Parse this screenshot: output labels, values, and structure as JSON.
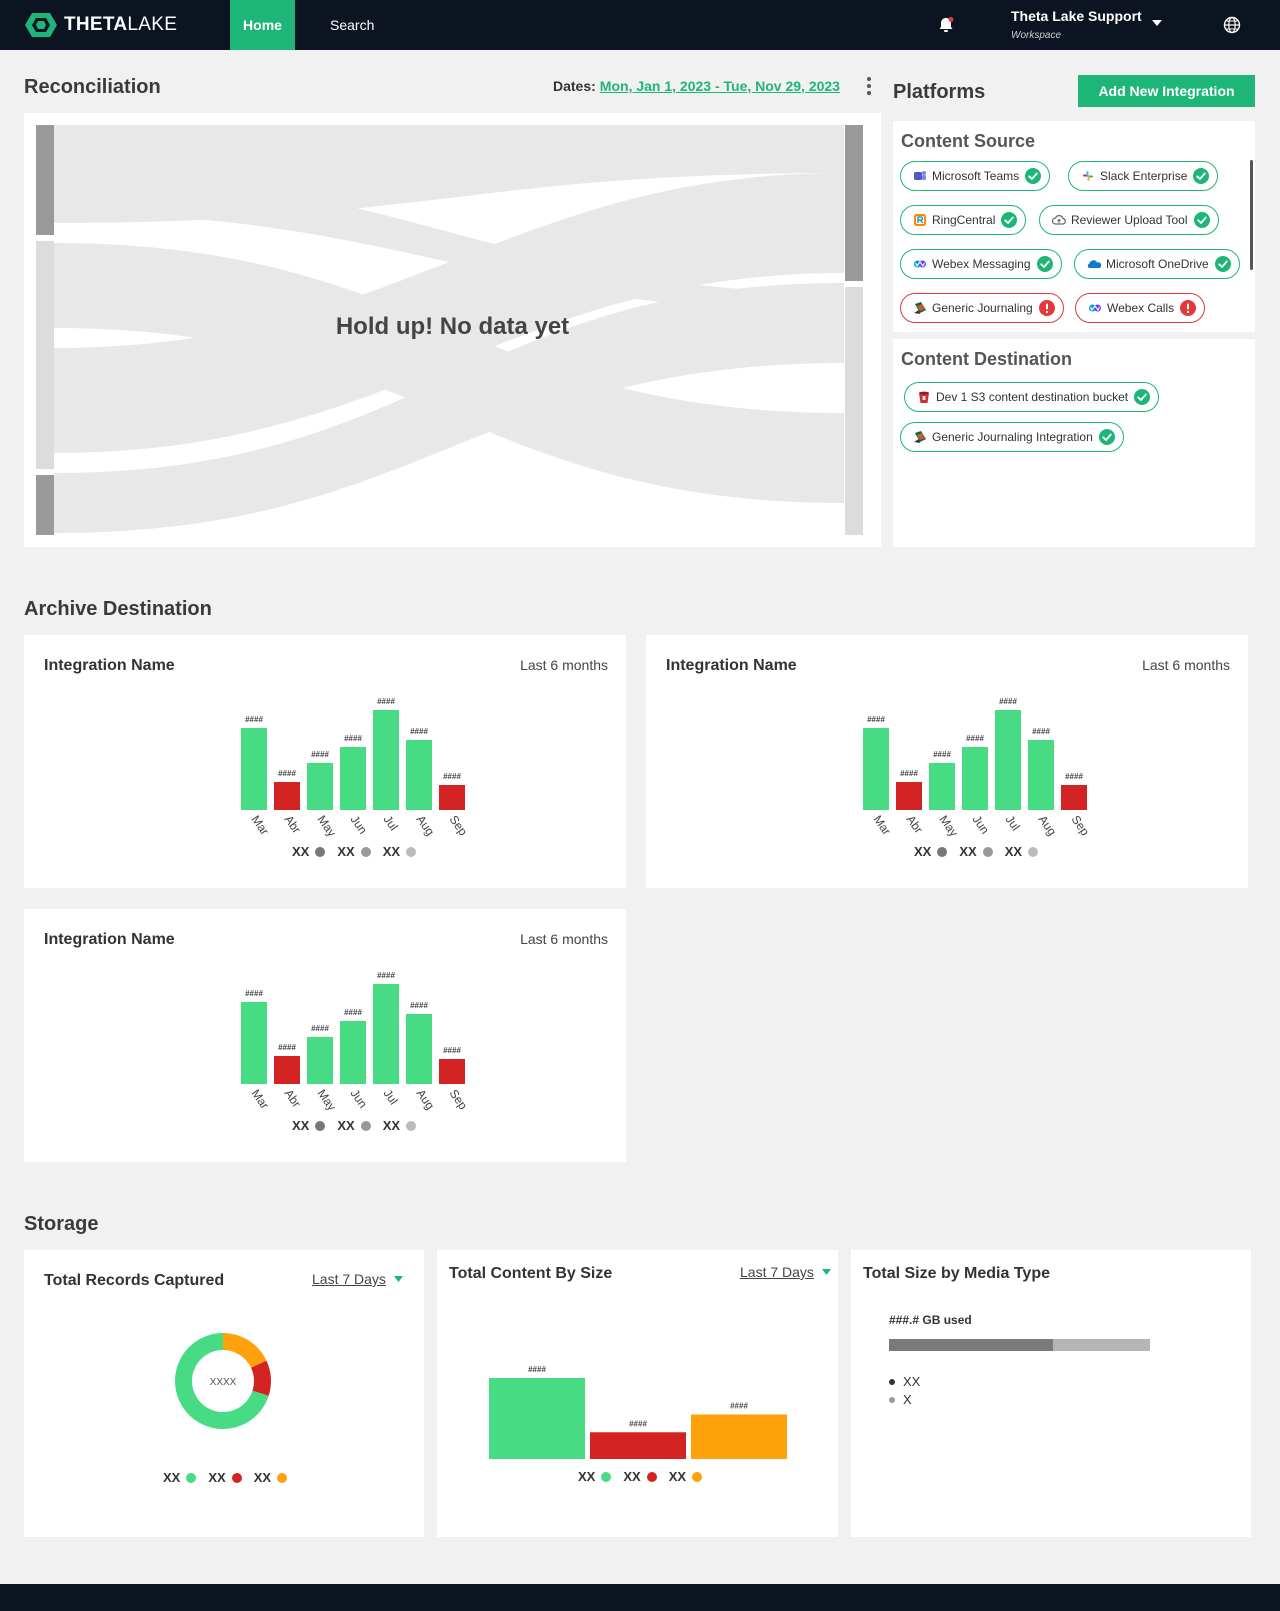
{
  "nav": {
    "brand_bold": "THETA",
    "brand_light": "LAKE",
    "home": "Home",
    "search": "Search",
    "user_name": "Theta Lake Support",
    "user_sub": "Workspace"
  },
  "reconciliation": {
    "title": "Reconciliation",
    "dates_label": "Dates:",
    "dates_value": "Mon, Jan 1, 2023 - Tue, Nov 29, 2023",
    "empty_message": "Hold up! No data yet"
  },
  "platforms": {
    "title": "Platforms",
    "add_button": "Add New Integration",
    "content_source_title": "Content Source",
    "content_source": [
      {
        "label": "Microsoft Teams",
        "icon": "teams-icon",
        "status": "ok"
      },
      {
        "label": "Slack Enterprise",
        "icon": "slack-icon",
        "status": "ok"
      },
      {
        "label": "RingCentral",
        "icon": "ringcentral-icon",
        "status": "ok"
      },
      {
        "label": "Reviewer Upload Tool",
        "icon": "cloud-upload-icon",
        "status": "ok"
      },
      {
        "label": "Webex Messaging",
        "icon": "webex-icon",
        "status": "ok"
      },
      {
        "label": "Microsoft OneDrive",
        "icon": "onedrive-icon",
        "status": "ok"
      },
      {
        "label": "Generic Journaling",
        "icon": "journaling-icon",
        "status": "error"
      },
      {
        "label": "Webex Calls",
        "icon": "webex-icon",
        "status": "error"
      }
    ],
    "content_destination_title": "Content Destination",
    "content_destination": [
      {
        "label": "Dev 1 S3 content destination bucket",
        "icon": "s3-bucket-icon",
        "status": "ok"
      },
      {
        "label": "Generic Journaling Integration",
        "icon": "journaling-icon",
        "status": "ok"
      }
    ]
  },
  "archive": {
    "title": "Archive Destination",
    "cards": [
      {
        "title": "Integration Name",
        "range": "Last 6 months"
      },
      {
        "title": "Integration Name",
        "range": "Last 6 months"
      },
      {
        "title": "Integration Name",
        "range": "Last 6 months"
      }
    ],
    "legend": [
      "XX",
      "XX",
      "XX"
    ]
  },
  "storage": {
    "title": "Storage",
    "records": {
      "title": "Total Records Captured",
      "range": "Last 7 Days",
      "center": "XXXX",
      "legend": [
        "XX",
        "XX",
        "XX"
      ]
    },
    "content_size": {
      "title": "Total Content By Size",
      "range": "Last 7 Days",
      "legend": [
        "XX",
        "XX",
        "XX"
      ]
    },
    "media": {
      "title": "Total Size by Media Type",
      "usage_label": "###.# GB used",
      "usage_fraction": 0.63,
      "items": [
        "XX",
        "X"
      ]
    }
  },
  "colors": {
    "accent": "#1db678",
    "bar_green": "#47dc83",
    "bar_red": "#d22222",
    "bar_orange": "#ffa10a",
    "legend_dark": "#777777",
    "legend_mid": "#999999",
    "legend_light": "#bbbbbb",
    "navy": "#0d1421"
  },
  "chart_data": [
    {
      "type": "bar",
      "title": "Integration Name",
      "categories": [
        "Mar",
        "Abr",
        "May",
        "Jun",
        "Jul",
        "Aug",
        "Sep"
      ],
      "values": [
        82,
        28,
        47,
        63,
        100,
        70,
        25
      ],
      "value_labels": [
        "####",
        "####",
        "####",
        "####",
        "####",
        "####",
        "####"
      ],
      "colors": [
        "#47dc83",
        "#d22222",
        "#47dc83",
        "#47dc83",
        "#47dc83",
        "#47dc83",
        "#d22222"
      ]
    },
    {
      "type": "bar",
      "title": "Integration Name",
      "categories": [
        "Mar",
        "Abr",
        "May",
        "Jun",
        "Jul",
        "Aug",
        "Sep"
      ],
      "values": [
        82,
        28,
        47,
        63,
        100,
        70,
        25
      ],
      "value_labels": [
        "####",
        "####",
        "####",
        "####",
        "####",
        "####",
        "####"
      ],
      "colors": [
        "#47dc83",
        "#d22222",
        "#47dc83",
        "#47dc83",
        "#47dc83",
        "#47dc83",
        "#d22222"
      ]
    },
    {
      "type": "bar",
      "title": "Integration Name",
      "categories": [
        "Mar",
        "Abr",
        "May",
        "Jun",
        "Jul",
        "Aug",
        "Sep"
      ],
      "values": [
        82,
        28,
        47,
        63,
        100,
        70,
        25
      ],
      "value_labels": [
        "####",
        "####",
        "####",
        "####",
        "####",
        "####",
        "####"
      ],
      "colors": [
        "#47dc83",
        "#d22222",
        "#47dc83",
        "#47dc83",
        "#47dc83",
        "#47dc83",
        "#d22222"
      ]
    },
    {
      "type": "pie",
      "title": "Total Records Captured",
      "values": [
        70,
        12,
        18
      ],
      "colors": [
        "#47dc83",
        "#d22222",
        "#ffa10a"
      ]
    },
    {
      "type": "bar",
      "title": "Total Content By Size",
      "values": [
        100,
        33,
        55
      ],
      "value_labels": [
        "####",
        "####",
        "####"
      ],
      "colors": [
        "#47dc83",
        "#d22222",
        "#ffa10a"
      ]
    }
  ]
}
